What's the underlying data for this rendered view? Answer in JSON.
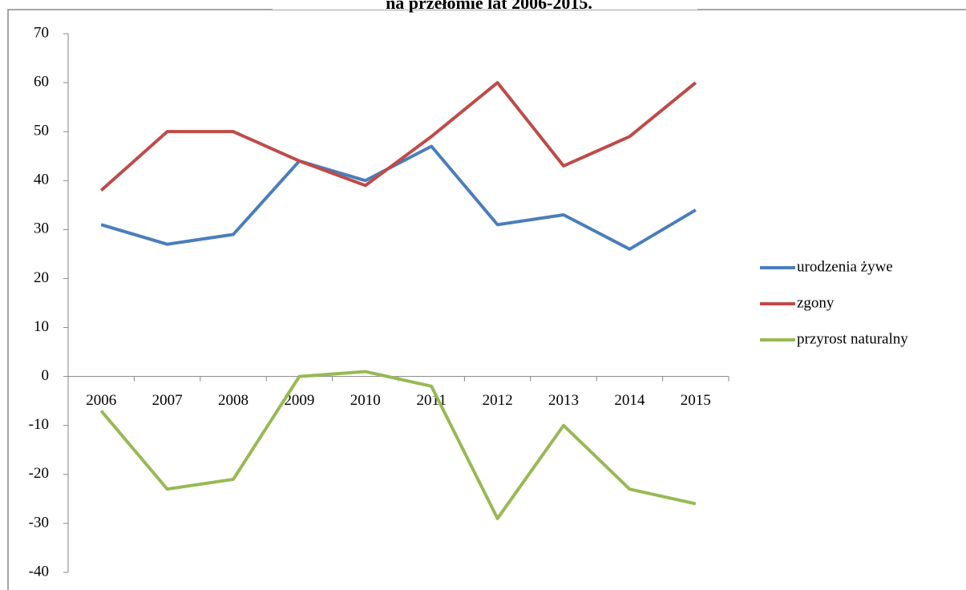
{
  "chart_data": {
    "type": "line",
    "title": "na przełomie lat 2006-2015.",
    "categories": [
      "2006",
      "2007",
      "2008",
      "2009",
      "2010",
      "2011",
      "2012",
      "2013",
      "2014",
      "2015"
    ],
    "series": [
      {
        "name": "urodzenia żywe",
        "color": "#4a7ebb",
        "values": [
          31,
          27,
          29,
          44,
          40,
          47,
          31,
          33,
          26,
          34
        ]
      },
      {
        "name": "zgony",
        "color": "#be4b48",
        "values": [
          38,
          50,
          50,
          44,
          39,
          49,
          60,
          43,
          49,
          60
        ]
      },
      {
        "name": "przyrost naturalny",
        "color": "#98b954",
        "values": [
          -7,
          -23,
          -21,
          0,
          1,
          -2,
          -29,
          -10,
          -23,
          -26
        ]
      }
    ],
    "ylim": [
      -40,
      70
    ],
    "yticks": [
      -40,
      -30,
      -20,
      -10,
      0,
      10,
      20,
      30,
      40,
      50,
      60,
      70
    ],
    "legend": "right"
  }
}
